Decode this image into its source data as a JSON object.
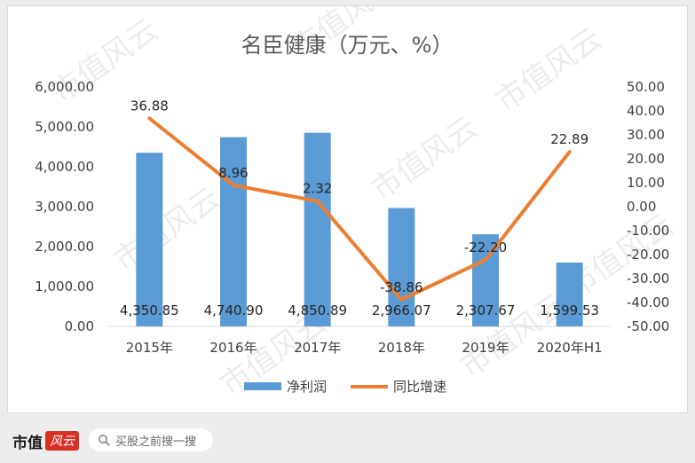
{
  "chart_data": {
    "type": "bar",
    "title": "名臣健康（万元、%）",
    "categories": [
      "2015年",
      "2016年",
      "2017年",
      "2018年",
      "2019年",
      "2020年H1"
    ],
    "series": [
      {
        "name": "净利润",
        "type": "bar",
        "axis": "left",
        "color": "#5b9bd5",
        "values": [
          4350.85,
          4740.9,
          4850.89,
          2966.07,
          2307.67,
          1599.53
        ],
        "labels": [
          "4,350.85",
          "4,740.90",
          "4,850.89",
          "2,966.07",
          "2,307.67",
          "1,599.53"
        ]
      },
      {
        "name": "同比增速",
        "type": "line",
        "axis": "right",
        "color": "#ed7d31",
        "values": [
          36.88,
          8.96,
          2.32,
          -38.86,
          -22.2,
          22.89
        ],
        "labels": [
          "36.88",
          "8.96",
          "2.32",
          "-38.86",
          "-22.20",
          "22.89"
        ]
      }
    ],
    "y_left": {
      "ylim": [
        0,
        6000
      ],
      "ticks": [
        "0.00",
        "1,000.00",
        "2,000.00",
        "3,000.00",
        "4,000.00",
        "5,000.00",
        "6,000.00"
      ]
    },
    "y_right": {
      "ylim": [
        -50,
        50
      ],
      "ticks": [
        "-50.00",
        "-40.00",
        "-30.00",
        "-20.00",
        "-10.00",
        "0.00",
        "10.00",
        "20.00",
        "30.00",
        "40.00",
        "50.00"
      ]
    },
    "xlabel": "",
    "ylabel": "",
    "grid": false,
    "legend": "bottom"
  },
  "watermark": {
    "text": "市值风云"
  },
  "footer": {
    "brand_text": "市值",
    "brand_mark": "风云",
    "search_placeholder": "买股之前搜一搜",
    "search_icon": "search-icon"
  }
}
